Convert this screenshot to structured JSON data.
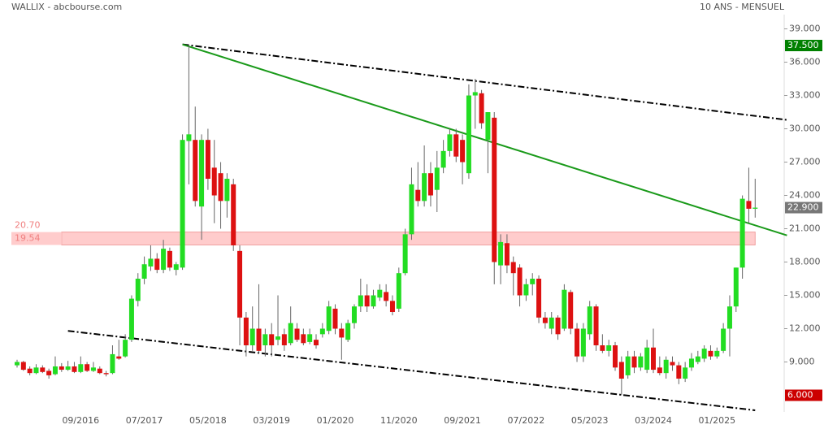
{
  "chart_data": {
    "type": "candlestick",
    "title": "WALLIX - abcbourse.com",
    "subtitle": "10 ANS - MENSUEL",
    "categories": [
      null,
      null,
      null,
      null,
      null,
      null,
      null,
      null,
      null,
      null,
      "09/2016",
      null,
      null,
      null,
      null,
      null,
      null,
      null,
      null,
      null,
      "07/2017",
      null,
      null,
      null,
      null,
      null,
      null,
      null,
      null,
      null,
      "05/2018",
      null,
      null,
      null,
      null,
      null,
      null,
      null,
      null,
      null,
      "03/2019",
      null,
      null,
      null,
      null,
      null,
      null,
      null,
      null,
      null,
      "01/2020",
      null,
      null,
      null,
      null,
      null,
      null,
      null,
      null,
      null,
      "11/2020",
      null,
      null,
      null,
      null,
      null,
      null,
      null,
      null,
      null,
      "09/2021",
      null,
      null,
      null,
      null,
      null,
      null,
      null,
      null,
      null,
      "07/2022",
      null,
      null,
      null,
      null,
      null,
      null,
      null,
      null,
      null,
      "05/2023",
      null,
      null,
      null,
      null,
      null,
      null,
      null,
      null,
      null,
      "03/2024",
      null,
      null,
      null,
      null,
      null,
      null,
      null,
      null,
      null,
      "01/2025",
      null,
      null,
      null,
      null,
      null,
      null
    ],
    "open": [
      8.7,
      9.0,
      8.4,
      8.0,
      8.5,
      8.2,
      7.9,
      8.6,
      8.3,
      8.6,
      8.1,
      8.8,
      8.2,
      8.4,
      8.0,
      8.0,
      9.5,
      9.5,
      11.0,
      14.5,
      16.5,
      17.6,
      18.3,
      17.3,
      19.0,
      17.3,
      17.5,
      28.9,
      29.0,
      23.0,
      29.0,
      26.5,
      26.0,
      23.5,
      25.0,
      19.0,
      13.0,
      10.5,
      12.0,
      10.5,
      11.5,
      11.0,
      11.5,
      10.7,
      12.0,
      11.5,
      10.8,
      11.0,
      11.5,
      11.8,
      13.8,
      12.0,
      11.0,
      12.5,
      14.0,
      15.0,
      14.0,
      14.8,
      15.3,
      14.5,
      13.8,
      17.0,
      20.5,
      24.5,
      23.5,
      26.0,
      24.5,
      26.5,
      28.0,
      29.5,
      29.0,
      26.0,
      33.0,
      33.2,
      29.0,
      31.0,
      17.7,
      19.7,
      18.0,
      17.5,
      15.0,
      16.0,
      16.5,
      13.0,
      12.0,
      13.0,
      12.0,
      15.3,
      12.0,
      9.5,
      11.5,
      14.0,
      10.5,
      10.0,
      10.5,
      9.0,
      7.8,
      9.5,
      8.5,
      8.3,
      10.3,
      8.5,
      8.0,
      9.0,
      8.7,
      7.5,
      8.5,
      9.0,
      9.3,
      10.0,
      9.5,
      10.0,
      12.0,
      14.0,
      17.5,
      23.5,
      22.8
    ],
    "high": [
      9.2,
      9.1,
      8.6,
      8.8,
      8.7,
      8.4,
      9.5,
      8.9,
      9.1,
      9.0,
      9.5,
      9.0,
      9.0,
      8.6,
      8.2,
      10.5,
      11.0,
      11.5,
      15.0,
      17.0,
      18.5,
      19.5,
      18.8,
      20.0,
      19.3,
      18.0,
      29.5,
      37.5,
      32.0,
      29.5,
      30.0,
      29.0,
      27.0,
      26.0,
      25.5,
      19.5,
      13.5,
      14.0,
      16.0,
      12.0,
      12.5,
      15.0,
      12.0,
      14.0,
      12.5,
      12.0,
      12.0,
      11.5,
      12.5,
      14.5,
      14.2,
      12.5,
      12.8,
      14.2,
      16.5,
      16.0,
      15.5,
      16.0,
      16.0,
      15.0,
      17.5,
      21.0,
      26.5,
      27.0,
      28.5,
      27.0,
      28.0,
      29.0,
      30.0,
      30.0,
      29.5,
      34.0,
      34.5,
      33.5,
      31.5,
      31.5,
      20.5,
      20.5,
      18.5,
      17.8,
      16.5,
      17.0,
      16.8,
      13.5,
      13.5,
      13.2,
      16.0,
      15.5,
      12.5,
      12.5,
      14.5,
      14.2,
      11.5,
      11.0,
      10.8,
      9.5,
      10.0,
      10.0,
      9.8,
      11.0,
      12.0,
      9.5,
      9.5,
      9.5,
      9.0,
      9.0,
      9.8,
      10.0,
      10.5,
      10.5,
      10.3,
      12.5,
      15.0,
      17.5,
      24.0,
      26.5,
      25.5
    ],
    "low": [
      8.5,
      8.2,
      7.8,
      7.9,
      8.0,
      7.5,
      7.8,
      8.1,
      8.2,
      8.0,
      8.0,
      8.1,
      8.1,
      7.9,
      7.7,
      7.9,
      9.2,
      9.4,
      10.8,
      14.0,
      16.0,
      17.2,
      17.0,
      17.0,
      17.2,
      16.8,
      17.3,
      25.0,
      23.0,
      20.0,
      24.5,
      21.5,
      21.0,
      22.0,
      19.0,
      10.5,
      9.5,
      10.0,
      9.8,
      9.5,
      9.5,
      10.5,
      10.0,
      10.5,
      10.8,
      10.5,
      10.6,
      10.2,
      11.2,
      11.5,
      11.5,
      9.2,
      10.8,
      12.0,
      13.5,
      13.5,
      13.8,
      14.5,
      14.0,
      13.2,
      13.5,
      16.8,
      20.0,
      23.0,
      23.0,
      23.0,
      22.5,
      26.0,
      27.5,
      27.0,
      25.0,
      25.5,
      30.0,
      30.0,
      26.0,
      16.0,
      16.0,
      17.0,
      15.0,
      14.0,
      14.5,
      15.0,
      12.5,
      12.0,
      11.5,
      11.0,
      11.8,
      11.5,
      9.0,
      9.0,
      11.0,
      10.0,
      9.8,
      9.5,
      8.2,
      6.0,
      7.5,
      8.0,
      8.2,
      8.0,
      8.0,
      7.8,
      7.5,
      8.2,
      7.0,
      7.2,
      8.2,
      8.8,
      9.0,
      9.2,
      9.3,
      9.8,
      9.5,
      13.5,
      16.5,
      21.5,
      22.0
    ],
    "close": [
      9.0,
      8.3,
      8.0,
      8.5,
      8.1,
      7.8,
      8.6,
      8.3,
      8.6,
      8.1,
      8.8,
      8.2,
      8.5,
      8.0,
      7.9,
      9.7,
      9.3,
      11.0,
      14.7,
      16.5,
      17.8,
      18.3,
      17.3,
      19.2,
      17.5,
      17.8,
      29.0,
      29.5,
      23.5,
      29.0,
      25.5,
      24.0,
      23.5,
      25.5,
      19.5,
      13.0,
      10.5,
      12.0,
      10.0,
      11.5,
      10.5,
      11.3,
      10.5,
      12.5,
      11.0,
      10.7,
      11.5,
      10.5,
      12.0,
      14.0,
      12.0,
      11.2,
      12.5,
      14.0,
      15.0,
      14.0,
      15.0,
      15.5,
      14.5,
      13.5,
      17.0,
      20.5,
      25.0,
      23.5,
      26.0,
      24.0,
      26.5,
      28.0,
      29.5,
      27.5,
      27.0,
      33.0,
      33.3,
      30.5,
      31.5,
      18.0,
      19.8,
      17.7,
      17.0,
      15.0,
      16.0,
      16.5,
      13.0,
      12.5,
      13.0,
      11.5,
      15.5,
      12.0,
      9.5,
      12.0,
      14.0,
      10.5,
      10.0,
      10.5,
      8.5,
      7.5,
      9.5,
      8.5,
      9.5,
      10.3,
      8.3,
      8.0,
      9.2,
      8.7,
      7.5,
      8.5,
      9.3,
      9.5,
      10.2,
      9.5,
      10.0,
      12.0,
      14.0,
      17.5,
      23.7,
      22.8,
      22.9
    ],
    "up_color": "#22dd22",
    "down_color": "#dd1111",
    "ylim": [
      4.5,
      41.6
    ],
    "yticks": [
      {
        "value": 9,
        "label": "9.000"
      },
      {
        "value": 12,
        "label": "12.000"
      },
      {
        "value": 15,
        "label": "15.000"
      },
      {
        "value": 18,
        "label": "18.000"
      },
      {
        "value": 21,
        "label": "21.000"
      },
      {
        "value": 24,
        "label": "24.000"
      },
      {
        "value": 27,
        "label": "27.000"
      },
      {
        "value": 30,
        "label": "30.000"
      },
      {
        "value": 33,
        "label": "33.000"
      },
      {
        "value": 36,
        "label": "36.000"
      },
      {
        "value": 39,
        "label": "39.000"
      }
    ],
    "price_markers": [
      {
        "value": 37.5,
        "label": "37.500",
        "color": "#008000"
      },
      {
        "value": 22.9,
        "label": "22.900",
        "color": "#777777"
      },
      {
        "value": 6,
        "label": "6.000",
        "color": "#cc0000"
      }
    ],
    "zone": {
      "x": [
        7,
        116
      ],
      "top": {
        "value": 20.7,
        "label": "20.70"
      },
      "bottom": {
        "value": 19.54,
        "label": "19.54"
      },
      "color": "#ffcccc"
    },
    "trendlines": [
      {
        "x": [
          26,
          121
        ],
        "y": [
          37.6,
          30.8
        ],
        "color": "#000000",
        "style": "dashdot"
      },
      {
        "x": [
          26,
          121
        ],
        "y": [
          37.6,
          20.4
        ],
        "color": "#1a9a1a",
        "style": "solid"
      },
      {
        "x": [
          8,
          116
        ],
        "y": [
          11.8,
          4.65
        ],
        "color": "#000000",
        "style": "dashdot"
      }
    ]
  }
}
